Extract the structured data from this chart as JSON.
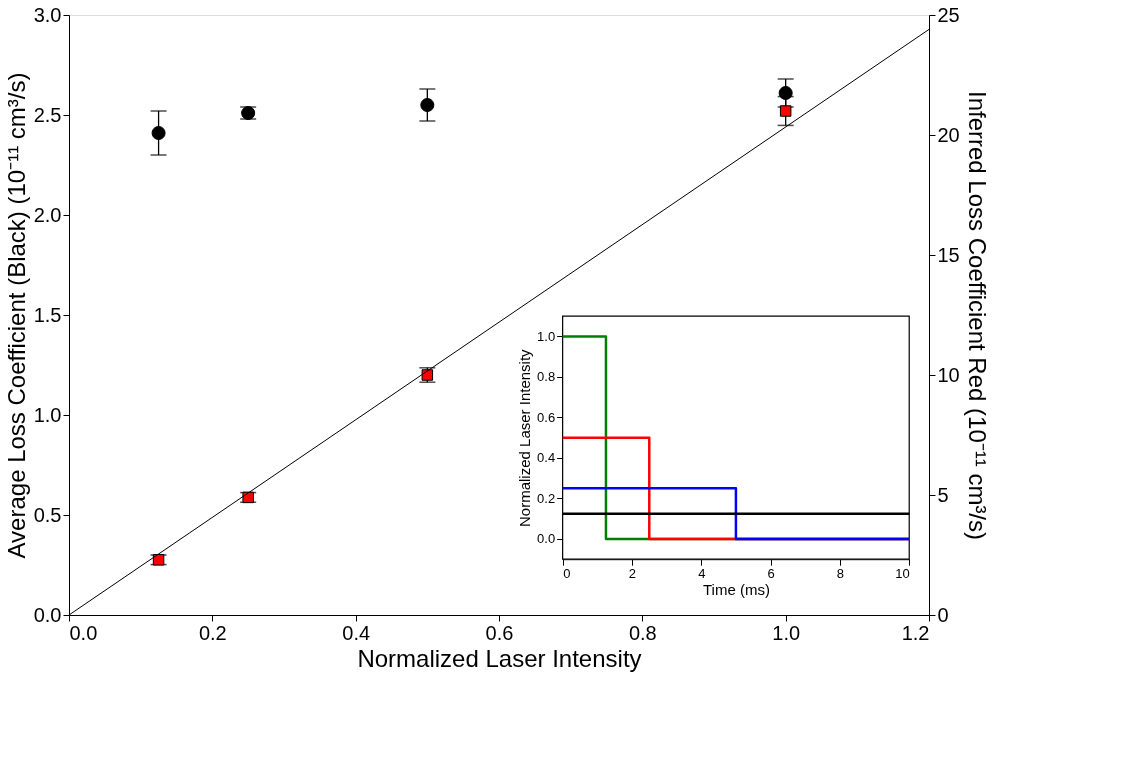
{
  "chart_data": [
    {
      "type": "scatter",
      "xlabel": "Normalized Laser Intensity",
      "ylabel": "Average Loss Coefficient (Black) (10⁻¹¹ cm³/s)",
      "y2label": "Inferred Loss Coefficient Red (10⁻¹¹ cm³/s)",
      "x": [
        0.125,
        0.25,
        0.5,
        1.0
      ],
      "xlim": [
        0,
        1.2
      ],
      "xticks": [
        {
          "value": 0,
          "label": "0.0"
        },
        0.2,
        0.4,
        0.6,
        0.8,
        {
          "value": 1,
          "label": "1.0"
        },
        1.2
      ],
      "ylim": [
        0,
        3
      ],
      "yticks": [
        {
          "value": 0,
          "label": "0.0"
        },
        0.5,
        {
          "value": 1,
          "label": "1.0"
        },
        1.5,
        {
          "value": 2,
          "label": "2.0"
        },
        2.5,
        {
          "value": 3,
          "label": "3.0"
        }
      ],
      "y2lim": [
        0,
        25
      ],
      "y2ticks": [
        0,
        5,
        10,
        15,
        20,
        25
      ],
      "series": [
        {
          "color": "#000000",
          "marker": "circle",
          "values": [
            2.41,
            2.51,
            2.55,
            2.61
          ],
          "errors": [
            0.11,
            0.03,
            0.08,
            0.07
          ]
        },
        {
          "color": "#ff0000",
          "marker": "square",
          "axis": "y2",
          "values": [
            2.3,
            4.9,
            10.0,
            21.0
          ],
          "errors": [
            0.2,
            0.2,
            0.3,
            0.6
          ]
        },
        {
          "type": "line",
          "color": "#000000",
          "axis": "y2",
          "marker": "none",
          "x": [
            0,
            1.2
          ],
          "values": [
            0,
            24.4
          ]
        }
      ]
    },
    {
      "type": "line",
      "xlabel": "Time (ms)",
      "ylabel": "Normalized Laser Intensity",
      "xlim": [
        0,
        10
      ],
      "xticks": [
        0,
        2,
        4,
        6,
        8,
        10
      ],
      "ylim": [
        -0.1,
        1.1
      ],
      "yticks": [
        {
          "value": 0,
          "label": "0.0"
        },
        0.2,
        0.4,
        0.6,
        0.8,
        {
          "value": 1,
          "label": "1.0"
        }
      ],
      "marker": "none",
      "line_style": "solid",
      "series": [
        {
          "color": "#008000",
          "x": [
            0,
            1.25,
            1.25,
            10
          ],
          "values": [
            1,
            1,
            0,
            0
          ]
        },
        {
          "color": "#ff0000",
          "x": [
            0,
            2.5,
            2.5,
            10
          ],
          "values": [
            0.5,
            0.5,
            0,
            0
          ]
        },
        {
          "color": "#0000ff",
          "x": [
            0,
            5,
            5,
            10
          ],
          "values": [
            0.25,
            0.25,
            0,
            0
          ]
        },
        {
          "color": "#000000",
          "x": [
            0,
            10
          ],
          "values": [
            0.125,
            0.125
          ]
        }
      ]
    }
  ]
}
